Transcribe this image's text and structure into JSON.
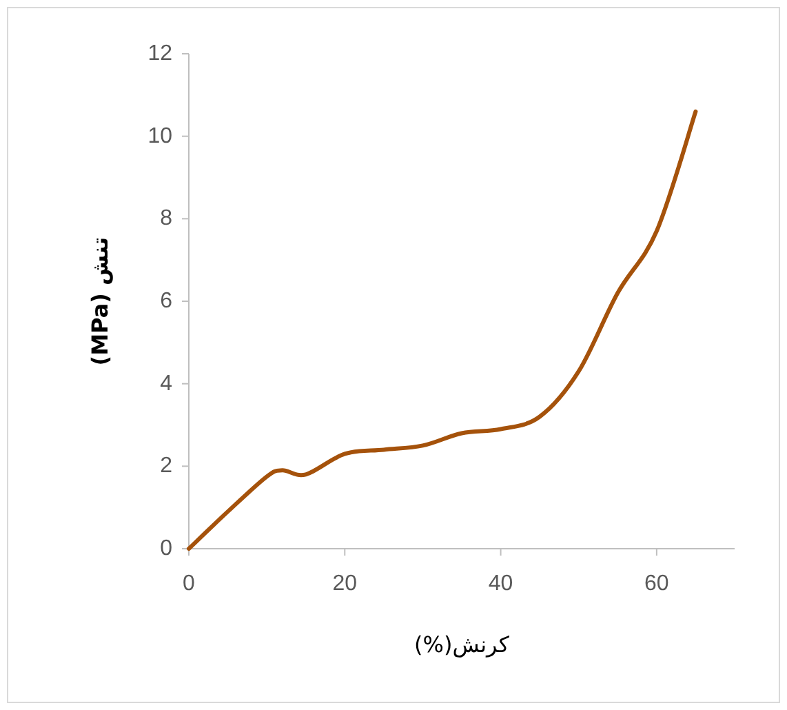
{
  "chart_data": {
    "type": "line",
    "xlabel": "کرنش(%)",
    "ylabel": "تنش (MPa)",
    "x": [
      0,
      5,
      10,
      12,
      15,
      20,
      25,
      30,
      35,
      40,
      45,
      50,
      55,
      60,
      65
    ],
    "series": [
      {
        "color": "#a5520b",
        "values": [
          0,
          0.9,
          1.75,
          1.9,
          1.8,
          2.3,
          2.4,
          2.5,
          2.8,
          2.9,
          3.2,
          4.3,
          6.2,
          7.7,
          10.6
        ]
      }
    ],
    "xlim": [
      0,
      70
    ],
    "ylim": [
      0,
      12
    ],
    "xticks": [
      0,
      20,
      40,
      60
    ],
    "yticks": [
      0,
      2,
      4,
      6,
      8,
      10,
      12
    ]
  }
}
